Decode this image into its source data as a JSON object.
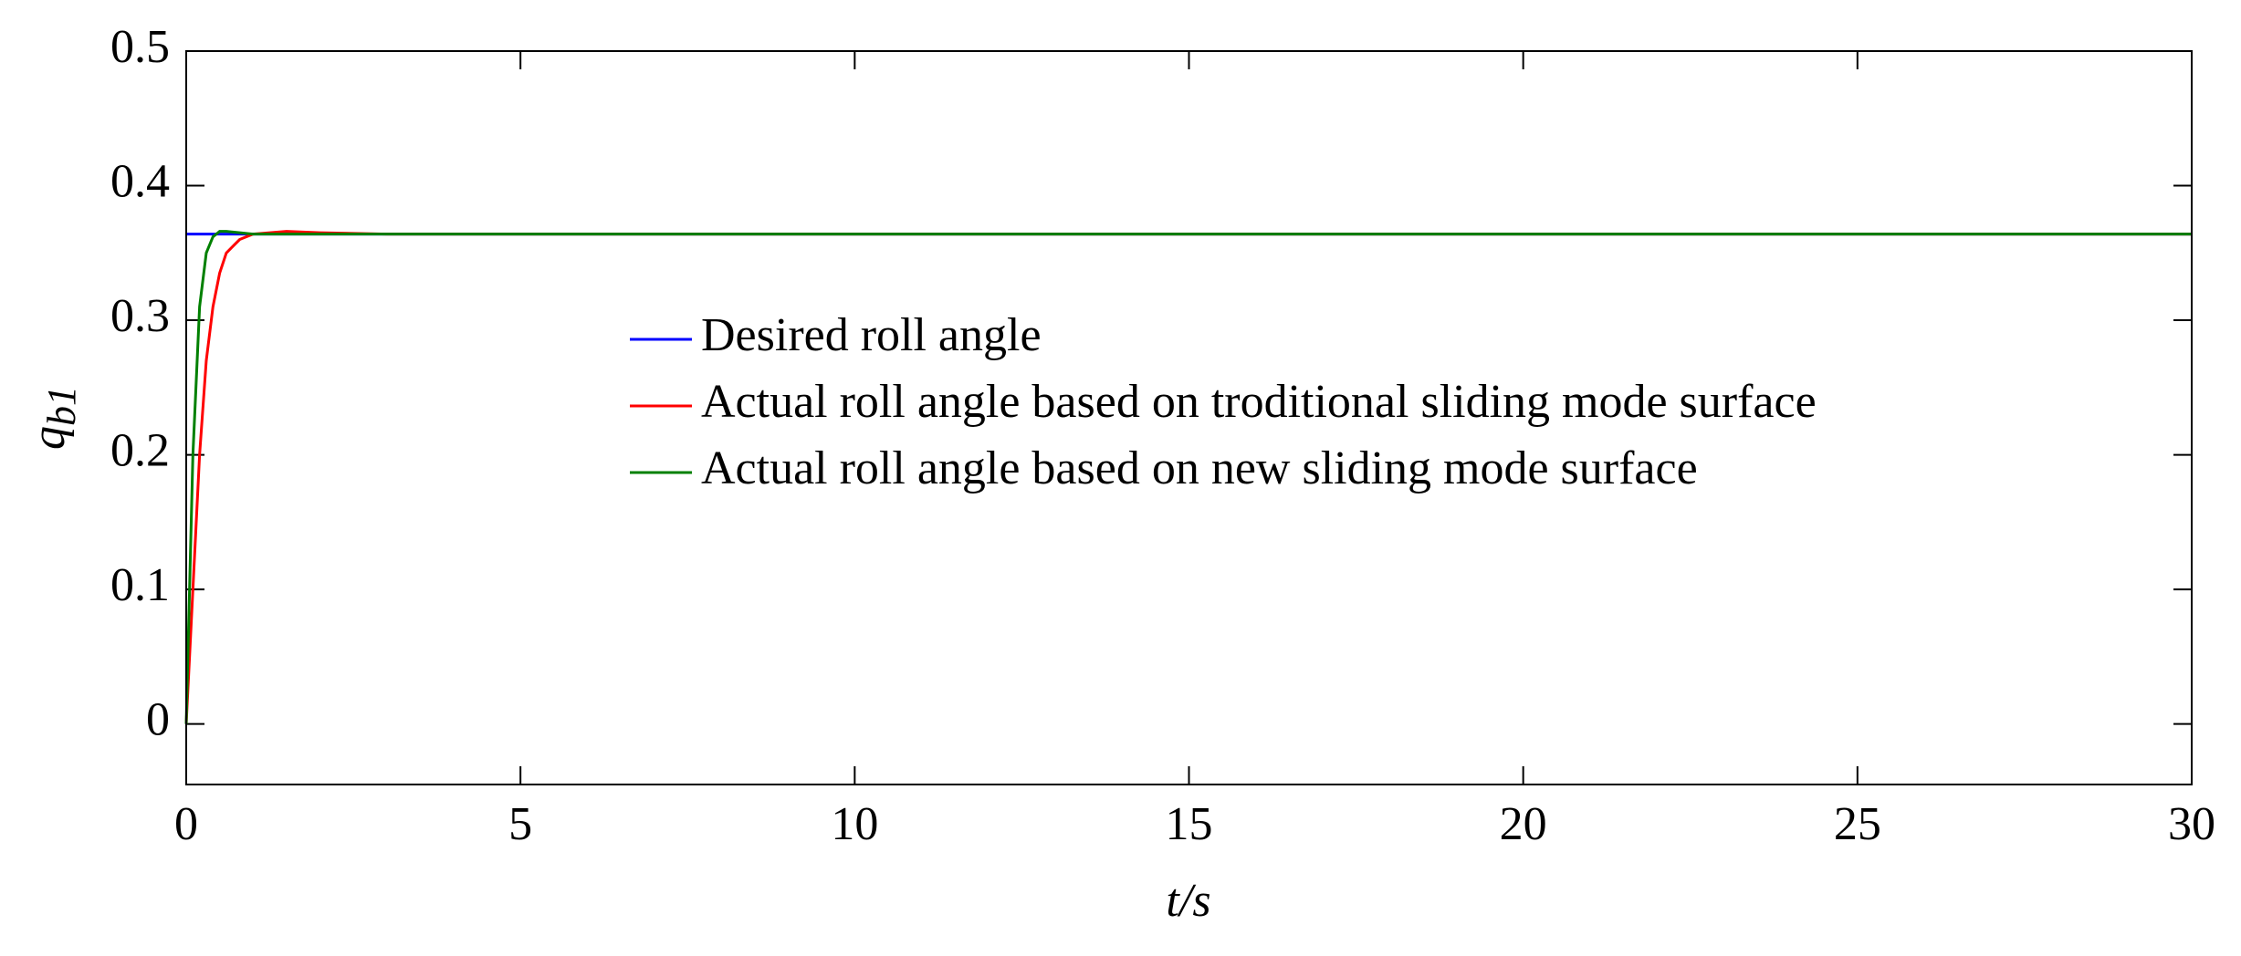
{
  "chart_data": {
    "type": "line",
    "xlabel": "t/s",
    "ylabel": "q",
    "ylabel_subscript": "b1",
    "x": [
      0,
      0.1,
      0.2,
      0.3,
      0.4,
      0.5,
      0.6,
      0.8,
      1,
      1.5,
      2,
      3,
      4,
      30
    ],
    "series": [
      {
        "name": "Desired roll angle",
        "color": "#0000ff",
        "values": [
          0.364,
          0.364,
          0.364,
          0.364,
          0.364,
          0.364,
          0.364,
          0.364,
          0.364,
          0.364,
          0.364,
          0.364,
          0.364,
          0.364
        ]
      },
      {
        "name": "Actual roll angle based on troditional sliding mode surface",
        "color": "#ff0000",
        "values": [
          0,
          0.1,
          0.2,
          0.27,
          0.31,
          0.335,
          0.35,
          0.36,
          0.364,
          0.366,
          0.365,
          0.364,
          0.364,
          0.364
        ]
      },
      {
        "name": "Actual roll angle based on new sliding mode surface",
        "color": "#008000",
        "values": [
          0,
          0.2,
          0.31,
          0.35,
          0.362,
          0.366,
          0.366,
          0.365,
          0.364,
          0.364,
          0.364,
          0.364,
          0.364,
          0.364
        ]
      }
    ],
    "xlim": [
      0,
      30
    ],
    "xticks": [
      0,
      5,
      10,
      15,
      20,
      25,
      30
    ],
    "ylim": [
      -0.045,
      0.5
    ],
    "yticks": [
      0,
      0.1,
      0.2,
      0.3,
      0.4,
      0.5
    ],
    "legend": "center",
    "grid": false
  }
}
